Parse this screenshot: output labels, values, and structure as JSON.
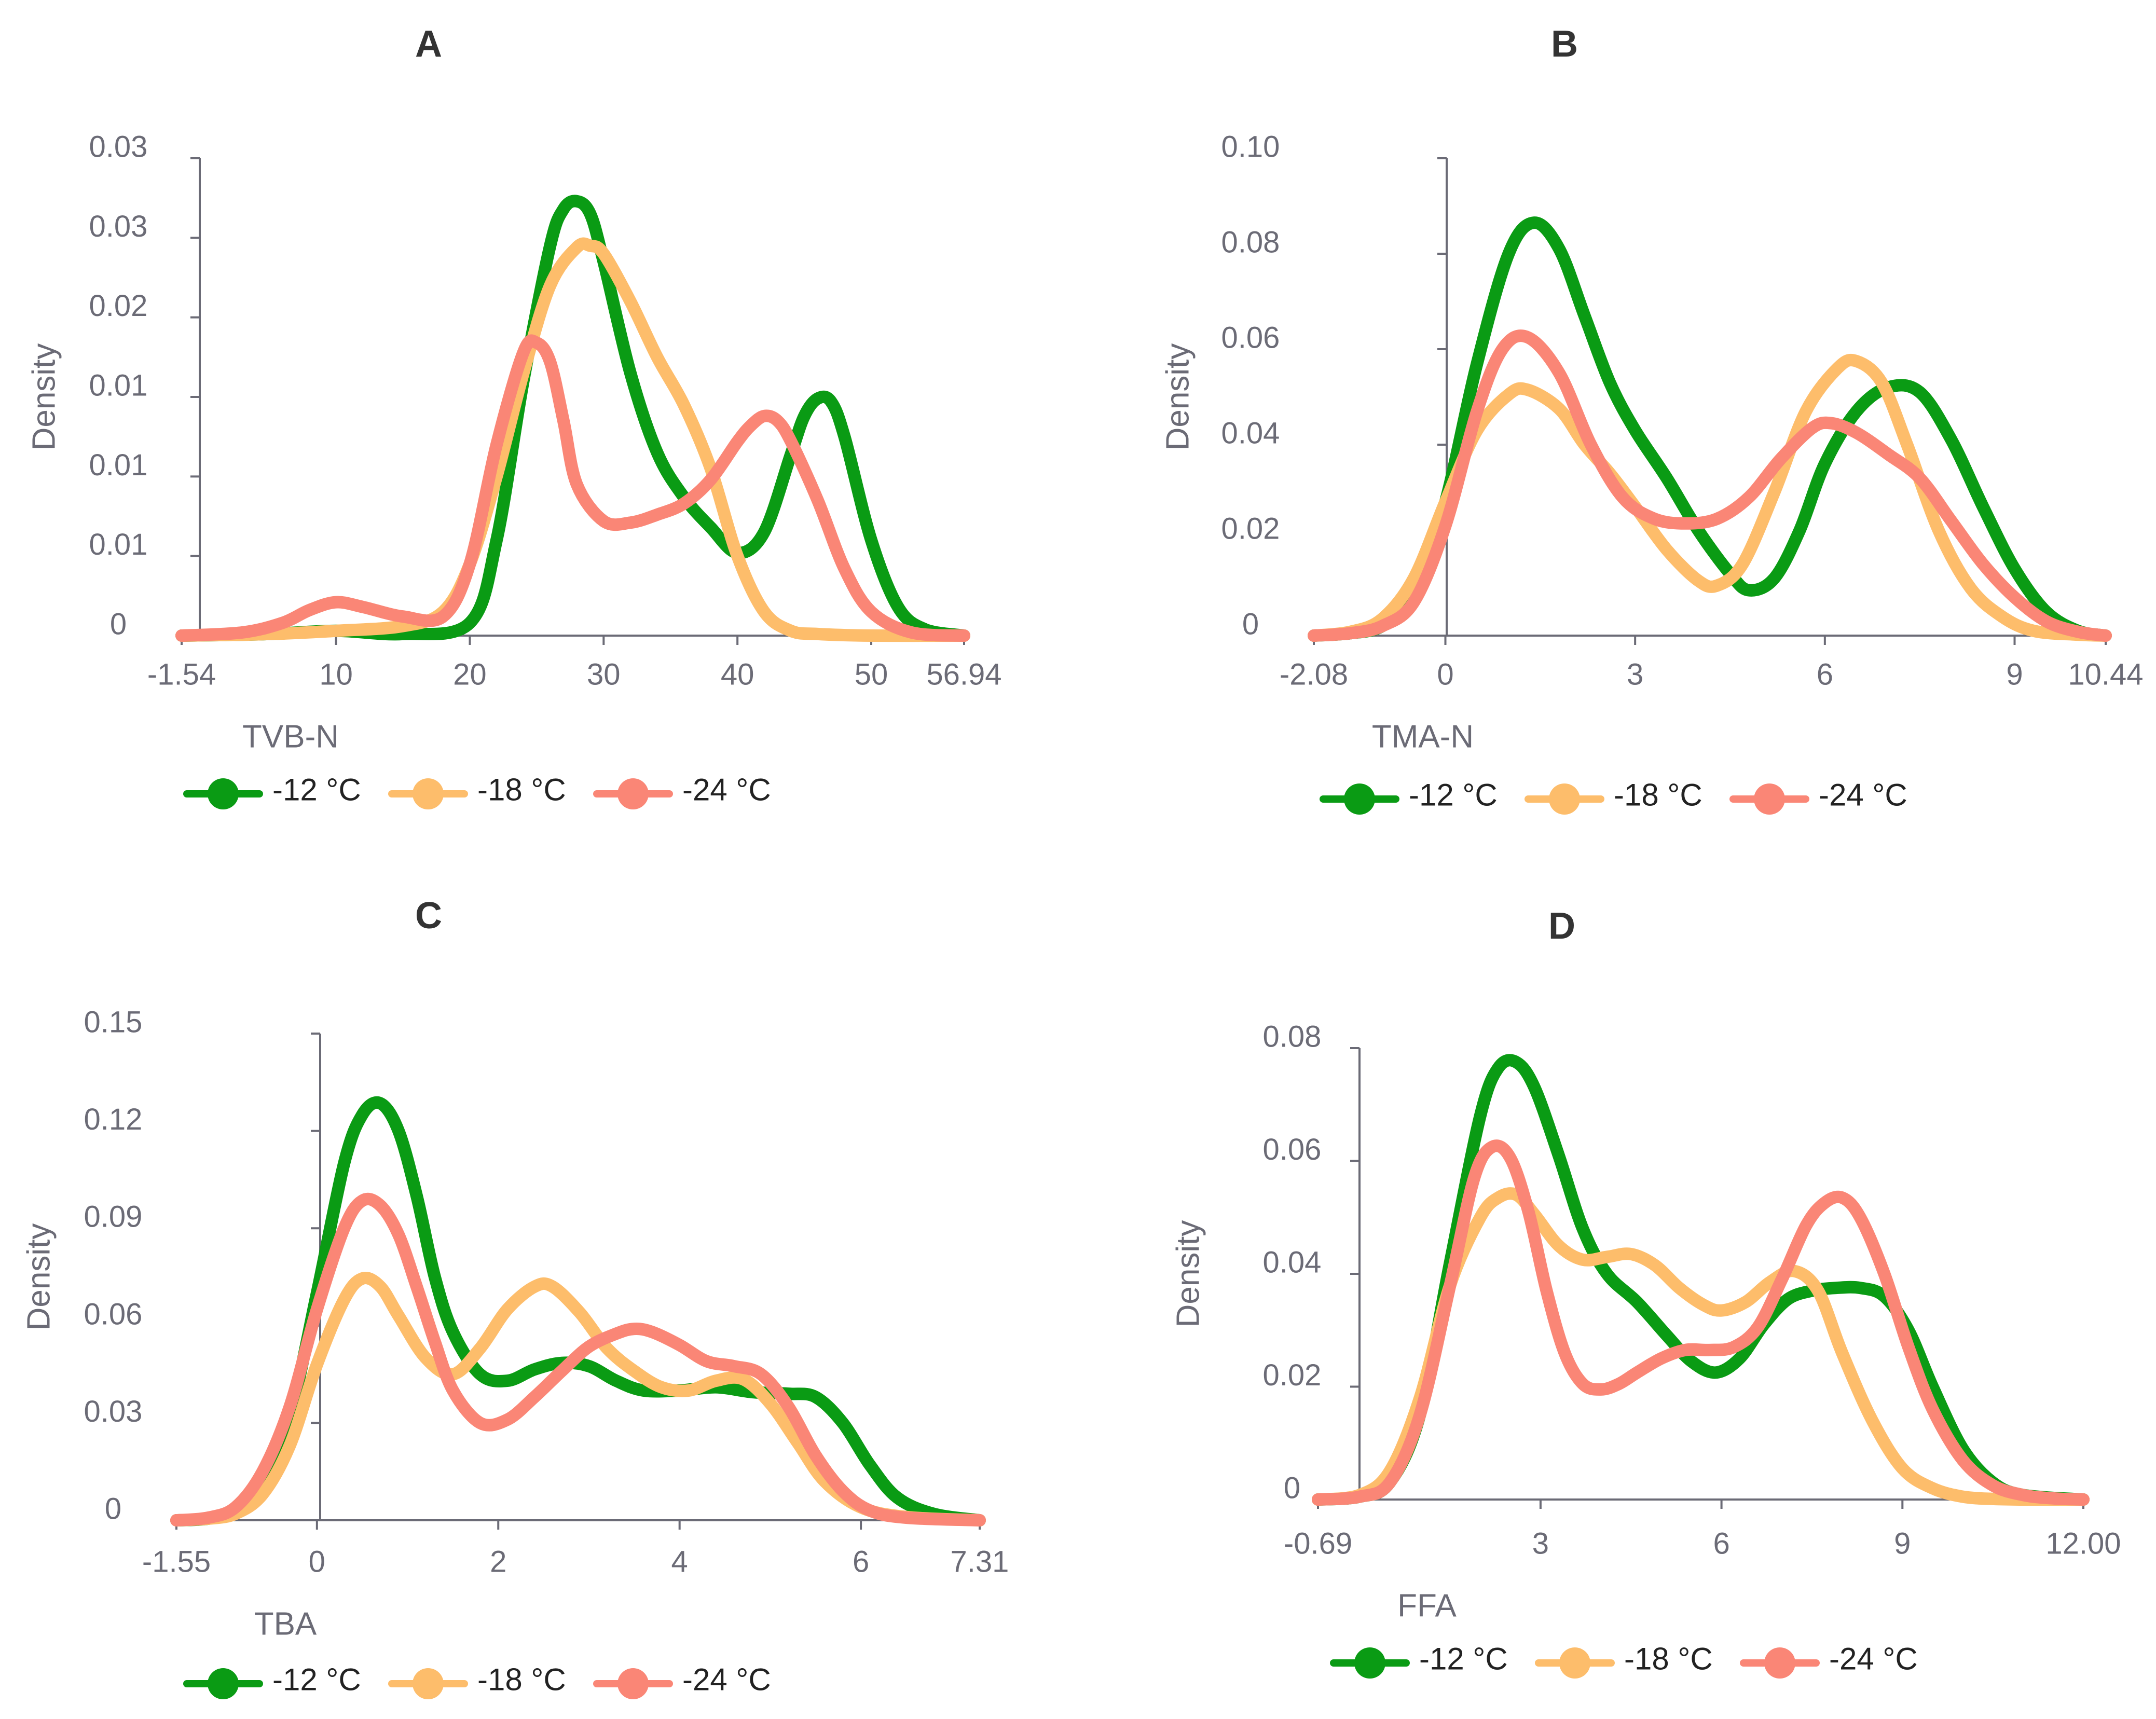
{
  "colors": {
    "s12": "#0a9b14",
    "s18": "#fdbd6b",
    "s24": "#fa8676"
  },
  "chart_data": [
    {
      "type": "line",
      "title": "A",
      "xlabel": "TVB-N",
      "ylabel": "Density",
      "xlim": [
        -1.54,
        56.94
      ],
      "ylim": [
        0,
        0.03
      ],
      "x_ticks": [
        -1.54,
        10,
        20,
        30,
        40,
        50,
        56.94
      ],
      "x_tick_labels": [
        "-1.54",
        "10",
        "20",
        "30",
        "40",
        "50",
        "56.94"
      ],
      "y_ticks": [
        0,
        0.005,
        0.01,
        0.015,
        0.02,
        0.025,
        0.03
      ],
      "y_tick_labels": [
        "0",
        "0.01",
        "0.01",
        "0.01",
        "0.02",
        "0.03",
        "0.03"
      ],
      "legend": [
        "-12 °C",
        "-18 °C",
        "-24 °C"
      ],
      "series": [
        {
          "name": "-12 °C",
          "x": [
            -1.54,
            5,
            10,
            15,
            20,
            22,
            24,
            26,
            27,
            28,
            29,
            30,
            32,
            34,
            36,
            38,
            40,
            42,
            44,
            45,
            46,
            47,
            48,
            50,
            52,
            54,
            56.94
          ],
          "y": [
            0,
            0.0001,
            0.0003,
            0.0001,
            0.0008,
            0.006,
            0.016,
            0.0245,
            0.0268,
            0.0273,
            0.0265,
            0.0235,
            0.0165,
            0.0115,
            0.0087,
            0.0068,
            0.0052,
            0.0065,
            0.0114,
            0.0138,
            0.0149,
            0.0147,
            0.0125,
            0.006,
            0.0018,
            0.0004,
            0
          ]
        },
        {
          "name": "-18 °C",
          "x": [
            -1.54,
            5,
            10,
            15,
            18,
            20,
            22,
            24,
            26,
            28,
            29,
            30,
            32,
            34,
            36,
            38,
            40,
            42,
            44,
            46,
            50,
            56.94
          ],
          "y": [
            0,
            0.0001,
            0.0003,
            0.0006,
            0.0015,
            0.0045,
            0.01,
            0.0165,
            0.022,
            0.0244,
            0.0245,
            0.024,
            0.021,
            0.0175,
            0.0145,
            0.0105,
            0.005,
            0.0015,
            0.0003,
            0.0001,
            0,
            0
          ]
        },
        {
          "name": "-24 °C",
          "x": [
            -1.54,
            3,
            6,
            8,
            10,
            12,
            15,
            18,
            20,
            22,
            24,
            25,
            26,
            27,
            28,
            30,
            32,
            34,
            36,
            38,
            40,
            41,
            42,
            43,
            44,
            46,
            48,
            50,
            53,
            56.94
          ],
          "y": [
            0,
            0.0002,
            0.0008,
            0.0016,
            0.0021,
            0.0018,
            0.0012,
            0.0012,
            0.0045,
            0.012,
            0.0178,
            0.0184,
            0.0172,
            0.0135,
            0.0095,
            0.0072,
            0.0071,
            0.0076,
            0.0083,
            0.0098,
            0.0122,
            0.0132,
            0.0138,
            0.0135,
            0.0122,
            0.0085,
            0.0042,
            0.0015,
            0.0002,
            0
          ]
        }
      ]
    },
    {
      "type": "line",
      "title": "B",
      "xlabel": "TMA-N",
      "ylabel": "Density",
      "xlim": [
        -2.08,
        10.44
      ],
      "ylim": [
        0,
        0.1
      ],
      "x_ticks": [
        -2.08,
        0,
        3,
        6,
        9,
        10.44
      ],
      "x_tick_labels": [
        "-2.08",
        "0",
        "3",
        "6",
        "9",
        "10.44"
      ],
      "y_ticks": [
        0,
        0.02,
        0.04,
        0.06,
        0.08,
        0.1
      ],
      "y_tick_labels": [
        "0",
        "0.02",
        "0.04",
        "0.06",
        "0.08",
        "0.10"
      ],
      "legend": [
        "-12 °C",
        "-18 °C",
        "-24 °C"
      ],
      "series": [
        {
          "name": "-12 °C",
          "x": [
            -2.08,
            -1.5,
            -1,
            -0.5,
            0,
            0.5,
            1,
            1.4,
            1.8,
            2.2,
            2.6,
            3,
            3.5,
            4,
            4.5,
            4.8,
            5.2,
            5.6,
            6,
            6.5,
            7,
            7.5,
            8,
            8.5,
            9,
            9.5,
            10,
            10.44
          ],
          "y": [
            0,
            0.0005,
            0.002,
            0.008,
            0.028,
            0.057,
            0.08,
            0.0865,
            0.081,
            0.067,
            0.053,
            0.043,
            0.033,
            0.022,
            0.013,
            0.0095,
            0.012,
            0.022,
            0.036,
            0.047,
            0.052,
            0.051,
            0.041,
            0.027,
            0.014,
            0.005,
            0.001,
            0
          ]
        },
        {
          "name": "-18 °C",
          "x": [
            -2.08,
            -1.5,
            -1,
            -0.5,
            0,
            0.5,
            1,
            1.3,
            1.8,
            2.2,
            2.6,
            3,
            3.5,
            4,
            4.3,
            4.7,
            5.2,
            5.7,
            6.2,
            6.5,
            6.9,
            7.3,
            7.8,
            8.3,
            8.8,
            9.3,
            10,
            10.44
          ],
          "y": [
            0,
            0.0008,
            0.0035,
            0.012,
            0.028,
            0.043,
            0.0505,
            0.0515,
            0.0475,
            0.04,
            0.034,
            0.027,
            0.018,
            0.0115,
            0.0105,
            0.015,
            0.03,
            0.047,
            0.056,
            0.0575,
            0.053,
            0.04,
            0.022,
            0.01,
            0.004,
            0.001,
            0.0002,
            0
          ]
        },
        {
          "name": "-24 °C",
          "x": [
            -2.08,
            -1.5,
            -1,
            -0.5,
            0,
            0.5,
            0.9,
            1.3,
            1.8,
            2.3,
            2.8,
            3.3,
            3.8,
            4.3,
            4.8,
            5.3,
            5.8,
            6.1,
            6.5,
            7,
            7.5,
            8,
            8.5,
            9,
            9.5,
            10,
            10.44
          ],
          "y": [
            0,
            0.0005,
            0.002,
            0.007,
            0.023,
            0.047,
            0.06,
            0.0625,
            0.055,
            0.04,
            0.029,
            0.0245,
            0.0235,
            0.0245,
            0.029,
            0.037,
            0.0435,
            0.0445,
            0.0425,
            0.038,
            0.033,
            0.024,
            0.015,
            0.008,
            0.003,
            0.0008,
            0
          ]
        }
      ]
    },
    {
      "type": "line",
      "title": "C",
      "xlabel": "TBA",
      "ylabel": "Density",
      "xlim": [
        -1.55,
        7.31
      ],
      "ylim": [
        0,
        0.15
      ],
      "x_ticks": [
        -1.55,
        0,
        2,
        4,
        6,
        7.31
      ],
      "x_tick_labels": [
        "-1.55",
        "0",
        "2",
        "4",
        "6",
        "7.31"
      ],
      "y_ticks": [
        0,
        0.03,
        0.06,
        0.09,
        0.12,
        0.15
      ],
      "y_tick_labels": [
        "0",
        "0.03",
        "0.06",
        "0.09",
        "0.12",
        "0.15"
      ],
      "legend": [
        "-12 °C",
        "-18 °C",
        "-24 °C"
      ],
      "series": [
        {
          "name": "-12 °C",
          "x": [
            -1.55,
            -1.2,
            -0.9,
            -0.6,
            -0.3,
            0,
            0.3,
            0.5,
            0.7,
            0.9,
            1.1,
            1.3,
            1.5,
            1.8,
            2.1,
            2.4,
            2.7,
            3,
            3.3,
            3.6,
            4,
            4.4,
            4.8,
            5.2,
            5.5,
            5.8,
            6.1,
            6.4,
            6.8,
            7.31
          ],
          "y": [
            0,
            0.0005,
            0.003,
            0.012,
            0.032,
            0.07,
            0.11,
            0.125,
            0.1285,
            0.12,
            0.1,
            0.075,
            0.058,
            0.045,
            0.043,
            0.0465,
            0.0485,
            0.0475,
            0.043,
            0.04,
            0.04,
            0.041,
            0.0395,
            0.039,
            0.038,
            0.03,
            0.017,
            0.007,
            0.002,
            0
          ]
        },
        {
          "name": "-18 °C",
          "x": [
            -1.55,
            -1.2,
            -0.9,
            -0.6,
            -0.3,
            0,
            0.3,
            0.5,
            0.7,
            0.9,
            1.2,
            1.5,
            1.8,
            2.1,
            2.4,
            2.6,
            2.9,
            3.2,
            3.5,
            3.8,
            4.1,
            4.4,
            4.7,
            5,
            5.3,
            5.6,
            6,
            6.5,
            7.31
          ],
          "y": [
            0,
            0.0005,
            0.002,
            0.008,
            0.023,
            0.048,
            0.068,
            0.0745,
            0.072,
            0.063,
            0.05,
            0.045,
            0.053,
            0.065,
            0.072,
            0.072,
            0.064,
            0.053,
            0.046,
            0.041,
            0.04,
            0.043,
            0.0435,
            0.036,
            0.024,
            0.012,
            0.004,
            0.001,
            0
          ]
        },
        {
          "name": "-24 °C",
          "x": [
            -1.55,
            -1.2,
            -0.9,
            -0.6,
            -0.3,
            0,
            0.3,
            0.5,
            0.7,
            0.9,
            1.1,
            1.3,
            1.5,
            1.8,
            2.1,
            2.4,
            2.7,
            3,
            3.3,
            3.5,
            3.7,
            4,
            4.3,
            4.6,
            4.9,
            5.2,
            5.5,
            5.8,
            6.1,
            6.5,
            7.31
          ],
          "y": [
            0,
            0.0008,
            0.004,
            0.015,
            0.035,
            0.065,
            0.09,
            0.0985,
            0.097,
            0.088,
            0.072,
            0.055,
            0.04,
            0.03,
            0.031,
            0.038,
            0.046,
            0.0535,
            0.0575,
            0.059,
            0.058,
            0.054,
            0.049,
            0.0475,
            0.045,
            0.035,
            0.02,
            0.009,
            0.003,
            0.0008,
            0
          ]
        }
      ]
    },
    {
      "type": "line",
      "title": "D",
      "xlabel": "FFA",
      "ylabel": "Density",
      "xlim": [
        -0.69,
        12.0
      ],
      "ylim": [
        0,
        0.08
      ],
      "x_ticks": [
        -0.69,
        3,
        6,
        9,
        12.0
      ],
      "x_tick_labels": [
        "-0.69",
        "3",
        "6",
        "9",
        "12.00"
      ],
      "y_ticks": [
        0,
        0.02,
        0.04,
        0.06,
        0.08
      ],
      "y_tick_labels": [
        "0",
        "0.02",
        "0.04",
        "0.06",
        "0.08"
      ],
      "legend": [
        "-12 °C",
        "-18 °C",
        "-24 °C"
      ],
      "series": [
        {
          "name": "-12 °C",
          "x": [
            -0.69,
            0,
            0.5,
            1,
            1.5,
            2,
            2.3,
            2.6,
            2.9,
            3.3,
            3.7,
            4.1,
            4.6,
            5.1,
            5.5,
            5.9,
            6.3,
            6.7,
            7.1,
            7.5,
            7.9,
            8.3,
            8.7,
            9.1,
            9.5,
            10,
            10.5,
            11,
            12.0
          ],
          "y": [
            0,
            0.0005,
            0.003,
            0.015,
            0.042,
            0.068,
            0.0765,
            0.0775,
            0.073,
            0.061,
            0.048,
            0.04,
            0.035,
            0.029,
            0.0245,
            0.0225,
            0.025,
            0.031,
            0.0355,
            0.037,
            0.0375,
            0.0375,
            0.036,
            0.03,
            0.02,
            0.009,
            0.003,
            0.0008,
            0
          ]
        },
        {
          "name": "-18 °C",
          "x": [
            -0.69,
            0,
            0.5,
            1,
            1.5,
            2,
            2.3,
            2.6,
            2.9,
            3.3,
            3.7,
            4.1,
            4.5,
            4.9,
            5.3,
            5.7,
            6,
            6.4,
            6.8,
            7.2,
            7.6,
            8,
            8.5,
            9,
            9.5,
            10,
            10.5,
            11,
            12.0
          ],
          "y": [
            0,
            0.0008,
            0.005,
            0.018,
            0.038,
            0.05,
            0.0535,
            0.054,
            0.0505,
            0.045,
            0.0425,
            0.043,
            0.0435,
            0.0415,
            0.0375,
            0.0345,
            0.0335,
            0.035,
            0.0385,
            0.0405,
            0.037,
            0.026,
            0.014,
            0.0055,
            0.002,
            0.0005,
            0.0001,
            0,
            0
          ]
        },
        {
          "name": "-24 °C",
          "x": [
            -0.69,
            0,
            0.5,
            1,
            1.5,
            1.9,
            2.2,
            2.5,
            2.8,
            3.1,
            3.4,
            3.7,
            4,
            4.3,
            4.6,
            5,
            5.4,
            5.8,
            6.2,
            6.6,
            7,
            7.4,
            7.7,
            8,
            8.3,
            8.7,
            9.1,
            9.5,
            10,
            10.5,
            11,
            11.5,
            12.0
          ],
          "y": [
            0,
            0.0005,
            0.003,
            0.015,
            0.038,
            0.057,
            0.0625,
            0.0605,
            0.051,
            0.037,
            0.026,
            0.0205,
            0.0195,
            0.0205,
            0.0225,
            0.025,
            0.0265,
            0.0265,
            0.027,
            0.0305,
            0.039,
            0.0485,
            0.0525,
            0.0535,
            0.05,
            0.04,
            0.027,
            0.016,
            0.007,
            0.0025,
            0.0008,
            0.0002,
            0
          ]
        }
      ]
    }
  ]
}
